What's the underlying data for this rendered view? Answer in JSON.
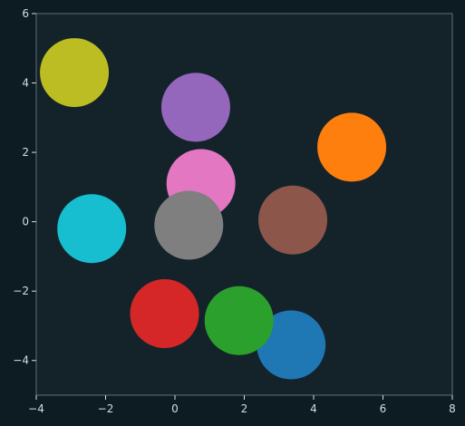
{
  "chart_data": {
    "type": "scatter",
    "title": "",
    "xlabel": "",
    "ylabel": "",
    "xlim": [
      -4,
      8
    ],
    "ylim": [
      -5,
      6
    ],
    "xticks": [
      -4,
      -2,
      0,
      2,
      4,
      6,
      8
    ],
    "yticks": [
      -4,
      -2,
      0,
      2,
      4,
      6
    ],
    "grid": false,
    "legend": "none",
    "background": "#0d1b22",
    "plot_background": "#14232a",
    "points": [
      {
        "x": 3.35,
        "y": -3.55,
        "color": "#1f77b4"
      },
      {
        "x": 1.85,
        "y": -2.85,
        "color": "#2ca02c"
      },
      {
        "x": -0.3,
        "y": -2.65,
        "color": "#d62728"
      },
      {
        "x": 0.75,
        "y": 1.1,
        "color": "#e377c2"
      },
      {
        "x": 0.6,
        "y": 3.3,
        "color": "#9467bd"
      },
      {
        "x": -2.9,
        "y": 4.3,
        "color": "#bcbd22"
      },
      {
        "x": 5.1,
        "y": 2.15,
        "color": "#ff7f0e"
      },
      {
        "x": 3.4,
        "y": 0.05,
        "color": "#8c564b"
      },
      {
        "x": 0.4,
        "y": -0.1,
        "color": "#7f7f7f"
      },
      {
        "x": -2.4,
        "y": -0.2,
        "color": "#17becf"
      }
    ]
  }
}
